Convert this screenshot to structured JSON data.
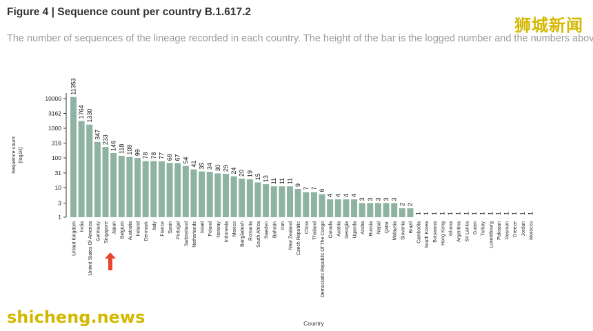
{
  "figure": {
    "title": "Figure 4 | Sequence count per country B.1.617.2",
    "caption": "The number of sequences of the lineage recorded in each country. The height of the bar is the logged number and the numbers above"
  },
  "watermarks": {
    "top_right": "狮城新闻",
    "bottom_left": "shicheng.news"
  },
  "colors": {
    "bar": "#8fb3a3",
    "axis": "#333333",
    "arrow": "#e8452c",
    "watermark": "#d4b800"
  },
  "chart_data": {
    "type": "bar",
    "ylabel": "Sequence count\n(log10)",
    "xlabel": "Country",
    "yscale": "log",
    "ylim": [
      1,
      11353
    ],
    "yticks": [
      1,
      3,
      10,
      31,
      100,
      316,
      1000,
      3162,
      10000
    ],
    "ytick_labels": [
      "1",
      "3",
      "10",
      "31",
      "100",
      "316",
      "1000",
      "3162",
      "10000"
    ],
    "grid": false,
    "categories": [
      "United Kingdom",
      "India",
      "United States Of America",
      "Germany",
      "Singapore",
      "Japan",
      "Belgium",
      "Australia",
      "Ireland",
      "Denmark",
      "Italy",
      "France",
      "Spain",
      "Portugal",
      "Switzerland",
      "Netherlands",
      "Israel",
      "Poland",
      "Norway",
      "Indonesia",
      "Mexico",
      "Bangladesh",
      "Romania",
      "South Africa",
      "Sweden",
      "Bahrain",
      "Iran",
      "New Zealand",
      "Czech Republic",
      "China",
      "Thailand",
      "Democratic Republic Of The Congo",
      "Canada",
      "Austria",
      "Georgia",
      "Uganda",
      "Aruba",
      "Russia",
      "Nepal",
      "Qatar",
      "Malaysia",
      "Slovenia",
      "Brazil",
      "Cambodia",
      "South Korea",
      "Botswana",
      "Hong Kong",
      "Ghana",
      "Argentina",
      "Sri Lanka",
      "Guam",
      "Turkey",
      "Luxembourg",
      "Pakistan",
      "Reunion",
      "Greece",
      "Jordan",
      "Morocco"
    ],
    "values": [
      11353,
      1764,
      1330,
      347,
      233,
      146,
      118,
      108,
      99,
      78,
      78,
      77,
      68,
      67,
      54,
      41,
      35,
      34,
      30,
      29,
      24,
      20,
      19,
      15,
      13,
      11,
      11,
      11,
      9,
      7,
      7,
      6,
      4,
      4,
      4,
      4,
      3,
      3,
      3,
      3,
      3,
      2,
      2,
      1,
      1,
      1,
      1,
      1,
      1,
      1,
      1,
      1,
      1,
      1,
      1,
      1,
      1,
      1
    ],
    "highlight": "Singapore"
  }
}
